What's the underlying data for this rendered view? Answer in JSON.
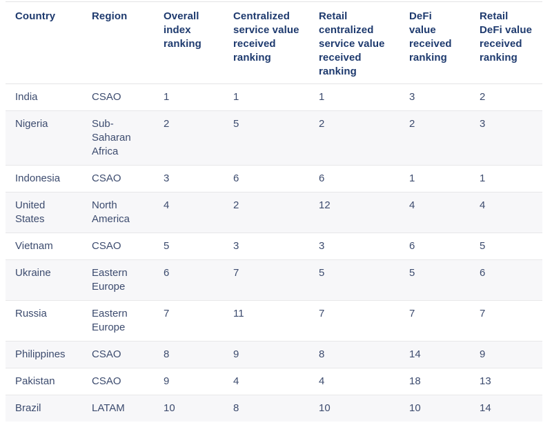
{
  "colors": {
    "header_text": "#1e3a6e",
    "body_text": "#3c4b6e",
    "stripe_background": "#f7f7f9",
    "row_border": "#e3e3e5",
    "page_background": "#ffffff"
  },
  "chart_data": {
    "type": "table",
    "title": "",
    "columns": [
      "Country",
      "Region",
      "Overall index ranking",
      "Centralized service value received ranking",
      "Retail centralized service value received ranking",
      "DeFi value received ranking",
      "Retail DeFi value received ranking"
    ],
    "rows": [
      {
        "cells": [
          "India",
          "CSAO",
          "1",
          "1",
          "1",
          "3",
          "2"
        ]
      },
      {
        "cells": [
          "Nigeria",
          "Sub-Saharan Africa",
          "2",
          "5",
          "2",
          "2",
          "3"
        ]
      },
      {
        "cells": [
          "Indonesia",
          "CSAO",
          "3",
          "6",
          "6",
          "1",
          "1"
        ]
      },
      {
        "cells": [
          "United States",
          "North America",
          "4",
          "2",
          "12",
          "4",
          "4"
        ]
      },
      {
        "cells": [
          "Vietnam",
          "CSAO",
          "5",
          "3",
          "3",
          "6",
          "5"
        ]
      },
      {
        "cells": [
          "Ukraine",
          "Eastern Europe",
          "6",
          "7",
          "5",
          "5",
          "6"
        ]
      },
      {
        "cells": [
          "Russia",
          "Eastern Europe",
          "7",
          "11",
          "7",
          "7",
          "7"
        ]
      },
      {
        "cells": [
          "Philippines",
          "CSAO",
          "8",
          "9",
          "8",
          "14",
          "9"
        ]
      },
      {
        "cells": [
          "Pakistan",
          "CSAO",
          "9",
          "4",
          "4",
          "18",
          "13"
        ]
      },
      {
        "cells": [
          "Brazil",
          "LATAM",
          "10",
          "8",
          "10",
          "10",
          "14"
        ]
      }
    ],
    "layout": {
      "striped_rows": "even rows shaded",
      "header_position": "top",
      "last_row_clipped": true
    }
  }
}
